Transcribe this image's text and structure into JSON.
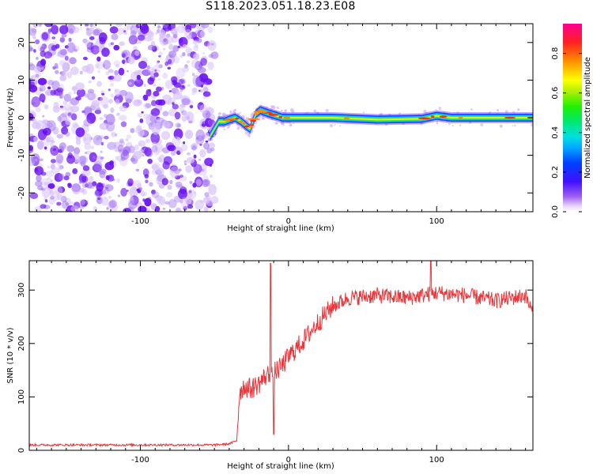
{
  "title": "S118.2023.051.18.23.E08",
  "chart_data": [
    {
      "type": "heatmap",
      "xlabel": "Height of straight line (km)",
      "ylabel": "Frequency (Hz)",
      "xlim": [
        -175,
        165
      ],
      "ylim": [
        -25,
        25
      ],
      "xticks": [
        -100,
        0,
        100
      ],
      "xticklabels": [
        "-100",
        "0",
        "100"
      ],
      "yticks": [
        -20,
        -10,
        0,
        10,
        20
      ],
      "yticklabels": [
        "-20",
        "-10",
        "0",
        "10",
        "20"
      ],
      "noise_region_x": [
        -175,
        -53
      ],
      "signal_line": {
        "x": [
          -53,
          -50,
          -47,
          -43,
          -40,
          -36,
          -32,
          -29,
          -26,
          -24,
          -22,
          -19,
          -16,
          -12,
          -8,
          -4,
          0,
          10,
          30,
          60,
          90,
          100,
          110,
          140,
          165
        ],
        "freq_hz": [
          -5,
          -3,
          -1,
          -1,
          -0.5,
          0,
          -1,
          -2,
          -3,
          -1,
          1,
          2,
          1.5,
          1,
          0.5,
          0,
          0,
          0,
          0,
          -0.5,
          -0.3,
          0.5,
          0,
          0,
          0
        ]
      },
      "colorbar": {
        "label": "Normalized spectral amplitude",
        "range": [
          0,
          0.95
        ],
        "ticks": [
          0.0,
          0.2,
          0.4,
          0.6,
          0.8
        ],
        "ticklabels": [
          "0.0",
          "0.2",
          "0.4",
          "0.6",
          "0.8"
        ]
      }
    },
    {
      "type": "line",
      "xlabel": "Height of straight line (km)",
      "ylabel": "SNR (10 * v/v)",
      "xlim": [
        -175,
        165
      ],
      "ylim": [
        0,
        355
      ],
      "xticks": [
        -100,
        0,
        100
      ],
      "xticklabels": [
        "-100",
        "0",
        "100"
      ],
      "yticks": [
        0,
        100,
        200,
        300
      ],
      "yticklabels": [
        "0",
        "100",
        "200",
        "300"
      ],
      "color": "#e8363a",
      "x": [
        -175,
        -150,
        -125,
        -100,
        -75,
        -50,
        -45,
        -40,
        -35,
        -33,
        -30,
        -25,
        -20,
        -15,
        -10,
        -5,
        0,
        10,
        20,
        30,
        40,
        60,
        80,
        100,
        120,
        140,
        160,
        165
      ],
      "y": [
        10,
        10,
        10,
        10,
        10,
        10,
        11,
        12,
        18,
        110,
        120,
        115,
        125,
        140,
        145,
        155,
        175,
        205,
        240,
        270,
        285,
        290,
        285,
        295,
        290,
        280,
        290,
        255
      ],
      "spikes": [
        {
          "x": -12,
          "y": 350
        },
        {
          "x": -10,
          "y": 30
        },
        {
          "x": 96,
          "y": 355
        }
      ]
    }
  ]
}
